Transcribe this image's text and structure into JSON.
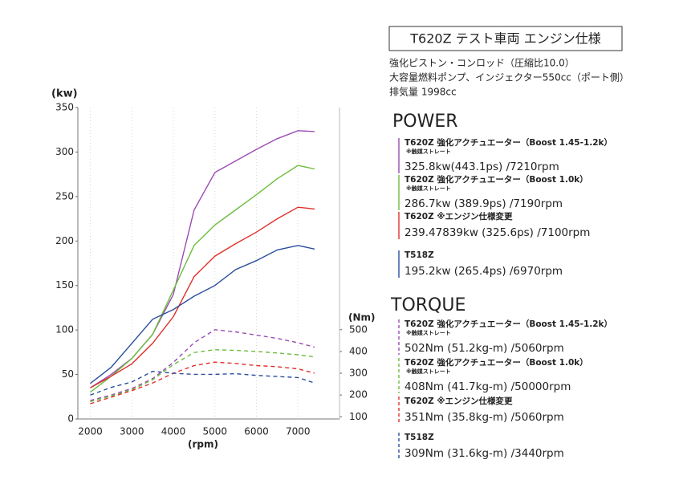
{
  "header": {
    "title": "T620Z テスト車両 エンジン仕様",
    "specs": [
      "強化ピストン・コンロッド（圧縮比10.0）",
      "大容量燃料ポンプ、インジェクター550cc（ポート側）",
      "排気量 1998cc"
    ]
  },
  "chart_data": {
    "type": "line",
    "ylabel": "(kw)",
    "y2label": "(Nm)",
    "xlabel": "(rpm)",
    "legend_titles": [
      "POWER",
      "TORQUE"
    ],
    "x": [
      2000,
      2500,
      3000,
      3500,
      4000,
      4500,
      5000,
      5500,
      6000,
      6500,
      7000,
      7400
    ],
    "xlim": [
      1700,
      8000
    ],
    "xticks": [
      2000,
      3000,
      4000,
      5000,
      6000,
      7000
    ],
    "ylim": [
      0,
      350
    ],
    "yticks": [
      0,
      50,
      100,
      150,
      200,
      250,
      300,
      350
    ],
    "y2lim": [
      90,
      1520
    ],
    "y2ticks": [
      100,
      200,
      300,
      400,
      500
    ],
    "grid": true,
    "series": [
      {
        "name": "T620Z 強化アクチュエーター（Boost 1.45-1.2k）",
        "note": "※触媒ストレート",
        "peak": "325.8kw(443.1ps) /7210rpm",
        "color": "#9a4cb4",
        "axis": "y",
        "values": [
          35,
          50,
          68,
          95,
          140,
          235,
          277,
          290,
          303,
          315,
          324,
          323
        ]
      },
      {
        "name": "T620Z 強化アクチュエーター（Boost 1.0k）",
        "note": "※触媒ストレート",
        "peak": "286.7kw (389.9ps) /7190rpm",
        "color": "#6cbd3c",
        "axis": "y",
        "values": [
          30,
          48,
          68,
          95,
          145,
          195,
          218,
          235,
          252,
          270,
          285,
          281
        ]
      },
      {
        "name": "T620Z ※エンジン仕様変更",
        "peak": "239.47839kw (325.6ps) /7100rpm",
        "color": "#e0302a",
        "axis": "y",
        "values": [
          35,
          48,
          62,
          85,
          115,
          160,
          183,
          197,
          210,
          225,
          238,
          236
        ]
      },
      {
        "name": "T518Z",
        "peak": "195.2kw (265.4ps) /6970rpm",
        "color": "#2b4d9c",
        "axis": "y",
        "values": [
          40,
          58,
          85,
          112,
          123,
          138,
          150,
          168,
          178,
          190,
          195,
          191
        ]
      },
      {
        "name": "T620Z 強化アクチュエーター（Boost 1.45-1.2k）",
        "note": "※触媒ストレート",
        "peak": "502Nm (51.2kg-m) /5060rpm",
        "color": "#9a4cb4",
        "axis": "y2",
        "values": [
          175,
          200,
          230,
          275,
          350,
          440,
          500,
          490,
          475,
          460,
          440,
          420
        ]
      },
      {
        "name": "T620Z 強化アクチュエーター（Boost 1.0k）",
        "note": "※触媒ストレート",
        "peak": "408Nm (41.7kg-m) /50000rpm",
        "color": "#6cbd3c",
        "axis": "y2",
        "values": [
          170,
          195,
          225,
          270,
          340,
          395,
          408,
          405,
          400,
          393,
          385,
          375
        ]
      },
      {
        "name": "T620Z ※エンジン仕様変更",
        "peak": "351Nm (35.8kg-m) /5060rpm",
        "color": "#e0302a",
        "axis": "y2",
        "values": [
          160,
          190,
          220,
          255,
          300,
          335,
          351,
          345,
          335,
          330,
          320,
          300
        ]
      },
      {
        "name": "T518Z",
        "peak": "309Nm (31.6kg-m) /3440rpm",
        "color": "#2b4d9c",
        "axis": "y2",
        "values": [
          200,
          235,
          260,
          309,
          300,
          295,
          295,
          298,
          290,
          285,
          280,
          255
        ]
      }
    ]
  }
}
